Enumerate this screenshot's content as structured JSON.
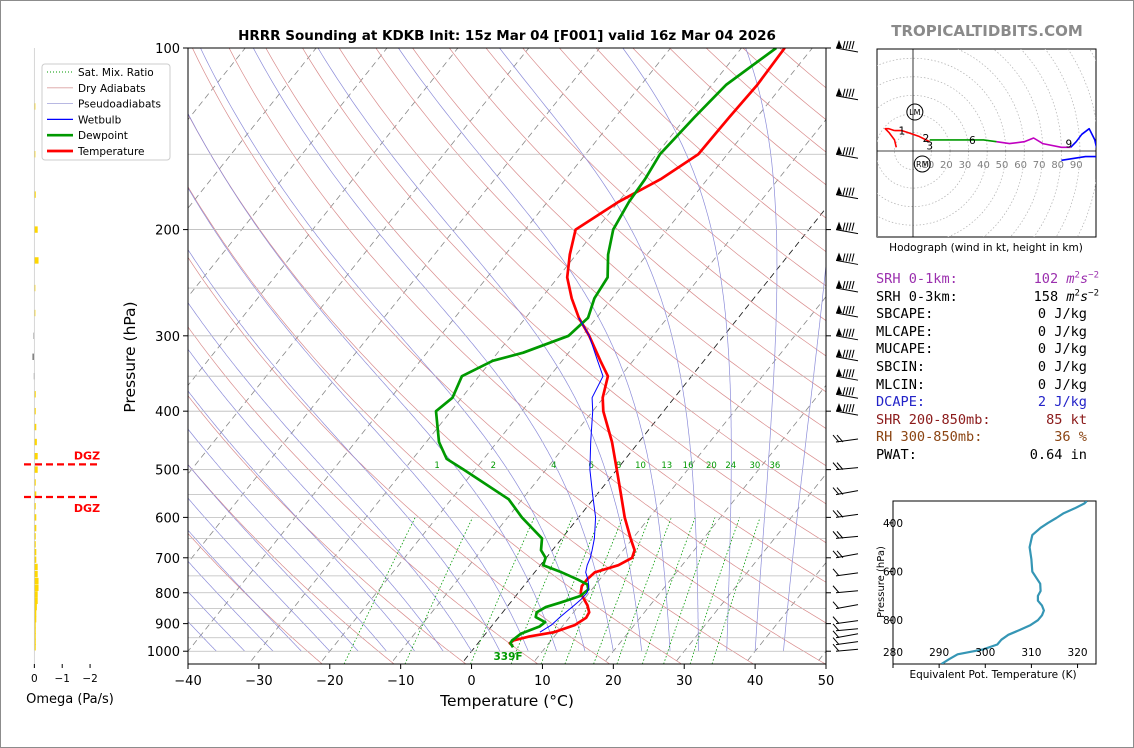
{
  "title": "HRRR Sounding at KDKB Init: 15z Mar 04 [F001] valid 16z Mar 04 2026",
  "brand": "TROPICALTIDBITS.COM",
  "colors": {
    "temperature": "#ff0000",
    "dewpoint": "#009900",
    "wetbulb": "#0000ff",
    "dry_adiabat": "#cc3333",
    "pseudoadiabat": "#3333cc",
    "mixratio": "#009900",
    "omega_up": "#ffd700",
    "omega_down": "#808080",
    "dgz": "#ff0000",
    "srh1": "#9b2fae",
    "dcape": "#2323c8",
    "shr": "#8b1a1a",
    "rh": "#8b4513",
    "hodo_theta": "#3596b5"
  },
  "legend": [
    {
      "label": "Sat. Mix. Ratio",
      "style": "dotted",
      "color": "#009900"
    },
    {
      "label": "Dry Adiabats",
      "style": "solid-thin",
      "color": "#d9a0a0"
    },
    {
      "label": "Pseudoadiabats",
      "style": "solid-thin",
      "color": "#a0a0d9"
    },
    {
      "label": "Wetbulb",
      "style": "solid",
      "color": "#0000ff"
    },
    {
      "label": "Dewpoint",
      "style": "thick",
      "color": "#009900"
    },
    {
      "label": "Temperature",
      "style": "thick",
      "color": "#ff0000"
    }
  ],
  "lcl_label": "339F",
  "dgz_label": "DGZ",
  "omega_label": "Omega (Pa/s)",
  "hodograph": {
    "caption": "Hodograph (wind in kt, height in km)",
    "storm_labels": [
      "LM",
      "RM"
    ]
  },
  "params": [
    {
      "label": "SRH 0-1km:",
      "value": "102",
      "unit": "m2s-2",
      "color": "#9b2fae"
    },
    {
      "label": "SRH 0-3km:",
      "value": "158",
      "unit": "m2s-2",
      "color": "#000000"
    },
    {
      "label": "SBCAPE:",
      "value": "0 J/kg",
      "color": "#000000"
    },
    {
      "label": "MLCAPE:",
      "value": "0 J/kg",
      "color": "#000000"
    },
    {
      "label": "MUCAPE:",
      "value": "0 J/kg",
      "color": "#000000"
    },
    {
      "label": "SBCIN:",
      "value": "0 J/kg",
      "color": "#000000"
    },
    {
      "label": "MLCIN:",
      "value": "0 J/kg",
      "color": "#000000"
    },
    {
      "label": "DCAPE:",
      "value": "2 J/kg",
      "color": "#2323c8"
    },
    {
      "label": "SHR 200-850mb:",
      "value": "85 kt",
      "color": "#8b1a1a"
    },
    {
      "label": "RH 300-850mb:",
      "value": "36 %",
      "color": "#8b4513"
    },
    {
      "label": "PWAT:",
      "value": "0.64 in",
      "color": "#000000"
    }
  ],
  "chart_data": [
    {
      "type": "line",
      "subtype": "skew-t",
      "title": "HRRR Sounding at KDKB Init: 15z Mar 04 [F001] valid 16z Mar 04 2026",
      "xlabel": "Temperature (°C)",
      "ylabel": "Pressure (hPa)",
      "xlim": [
        -40,
        50
      ],
      "ylim": [
        1050,
        100
      ],
      "yscale": "log",
      "xticks": [
        -40,
        -30,
        -20,
        -10,
        0,
        10,
        20,
        30,
        40,
        50
      ],
      "xtick_labels": [
        "−40",
        "−30",
        "−20",
        "−10",
        "0",
        "10",
        "20",
        "30",
        "40",
        "50"
      ],
      "yticks": [
        100,
        200,
        300,
        400,
        500,
        600,
        700,
        800,
        900,
        1000
      ],
      "pressure_gridlines": [
        100,
        150,
        200,
        250,
        300,
        350,
        400,
        450,
        500,
        550,
        600,
        650,
        700,
        750,
        800,
        850,
        900,
        950,
        1000
      ],
      "mixing_ratio_labels": [
        "1",
        "2",
        "4",
        "6",
        "8",
        "10",
        "13",
        "16",
        "20",
        "24",
        "30",
        "36"
      ],
      "mixing_ratio_values": [
        1,
        2,
        4,
        6,
        8,
        10,
        13,
        16,
        20,
        24,
        30,
        36
      ],
      "series": [
        {
          "name": "Temperature",
          "pressure": [
            980,
            970,
            960,
            945,
            930,
            905,
            880,
            862,
            840,
            820,
            800,
            780,
            760,
            740,
            720,
            700,
            680,
            650,
            600,
            550,
            500,
            450,
            400,
            380,
            350,
            330,
            300,
            280,
            260,
            240,
            220,
            200,
            180,
            165,
            150,
            130,
            115,
            100
          ],
          "temp": [
            5.2,
            4.5,
            4.7,
            6.5,
            9.5,
            11.6,
            12.4,
            12.2,
            11.2,
            10.0,
            8.8,
            8.2,
            8.2,
            8.5,
            11.0,
            12.1,
            11.6,
            9.7,
            6.5,
            3.4,
            0.0,
            -3.8,
            -8.5,
            -10.1,
            -11.8,
            -14.6,
            -19.0,
            -22.5,
            -25.7,
            -28.7,
            -30.9,
            -32.9,
            -30.0,
            -26.6,
            -24.1,
            -23.9,
            -23.6,
            -23.9
          ]
        },
        {
          "name": "Dewpoint",
          "pressure": [
            985,
            970,
            960,
            950,
            935,
            910,
            895,
            878,
            862,
            845,
            830,
            810,
            790,
            775,
            760,
            740,
            720,
            700,
            680,
            650,
            600,
            560,
            500,
            480,
            450,
            400,
            380,
            350,
            330,
            320,
            300,
            280,
            260,
            240,
            220,
            200,
            180,
            165,
            150,
            130,
            115,
            100
          ],
          "temp": [
            5.4,
            4.6,
            4.5,
            4.7,
            5.0,
            6.8,
            7.1,
            5.2,
            4.8,
            5.5,
            7.1,
            9.1,
            9.5,
            8.8,
            6.8,
            3.8,
            0.4,
            -0.1,
            -1.6,
            -2.8,
            -8.0,
            -11.9,
            -21.6,
            -25.2,
            -28.2,
            -32.1,
            -31.3,
            -32.4,
            -29.8,
            -26.4,
            -21.9,
            -21.2,
            -22.5,
            -23.0,
            -25.5,
            -27.6,
            -28.5,
            -28.8,
            -29.5,
            -28.8,
            -28.0,
            -25.1
          ]
        },
        {
          "name": "Wetbulb",
          "pressure": [
            930,
            905,
            880,
            862,
            840,
            820,
            800,
            780,
            760,
            740,
            720,
            700,
            680,
            650,
            600,
            550,
            500,
            450,
            400,
            380,
            350,
            330,
            300,
            280
          ],
          "temp": [
            7.5,
            8.3,
            8.6,
            8.9,
            9.3,
            9.6,
            9.7,
            9.2,
            8.3,
            7.2,
            6.6,
            6.2,
            5.6,
            4.6,
            2.4,
            -0.6,
            -3.8,
            -6.8,
            -10.0,
            -11.6,
            -12.5,
            -15.0,
            -19.0,
            -22.5
          ]
        }
      ]
    },
    {
      "type": "bar",
      "subtype": "omega-profile",
      "xlabel": "Omega (Pa/s)",
      "xlim": [
        0.3,
        -2.5
      ],
      "xticks": [
        0,
        -1,
        -2
      ],
      "xtick_labels": [
        "0",
        "−1",
        "−2"
      ],
      "pressure": [
        985,
        965,
        945,
        925,
        905,
        885,
        865,
        845,
        825,
        805,
        785,
        765,
        745,
        725,
        705,
        685,
        665,
        645,
        625,
        600,
        575,
        550,
        525,
        500,
        475,
        450,
        425,
        400,
        375,
        350,
        325,
        300,
        275,
        250,
        225,
        200,
        175,
        150,
        125
      ],
      "values": [
        -0.05,
        -0.05,
        -0.05,
        -0.05,
        -0.05,
        -0.07,
        -0.07,
        -0.09,
        -0.12,
        -0.12,
        -0.15,
        -0.15,
        -0.12,
        -0.12,
        -0.07,
        -0.07,
        -0.05,
        -0.05,
        -0.07,
        -0.07,
        -0.05,
        -0.07,
        -0.05,
        -0.12,
        -0.12,
        -0.09,
        -0.07,
        -0.05,
        -0.05,
        0.02,
        0.07,
        0.03,
        -0.03,
        -0.03,
        -0.15,
        -0.12,
        -0.05,
        -0.03,
        -0.03
      ],
      "dgz_pressures": [
        490,
        555
      ]
    },
    {
      "type": "line",
      "subtype": "hodograph",
      "xlabel": "",
      "ylabel": "",
      "ring_labels": [
        "10",
        "20",
        "30",
        "40",
        "50",
        "60",
        "70",
        "80",
        "90"
      ],
      "ring_values": [
        10,
        20,
        30,
        40,
        50,
        60,
        70,
        80,
        90
      ],
      "height_labels": [
        "1",
        "2",
        "3",
        "6",
        "9"
      ],
      "series": [
        {
          "name": "0-1km",
          "color": "#ff0000",
          "u": [
            -9,
            -10,
            -13,
            -15,
            -13,
            -10
          ],
          "v": [
            2,
            6,
            10,
            12,
            12,
            11
          ]
        },
        {
          "name": "1-3km",
          "color": "#ff0000",
          "u": [
            -10,
            -6,
            -3,
            3,
            7,
            9
          ],
          "v": [
            11,
            11,
            10,
            8,
            6,
            5
          ]
        },
        {
          "name": "3-6km",
          "color": "#009900",
          "u": [
            9,
            14,
            20,
            30,
            38,
            45
          ],
          "v": [
            6,
            6,
            6,
            6,
            6,
            5
          ]
        },
        {
          "name": "6-9km",
          "color": "#c000c0",
          "u": [
            45,
            52,
            60,
            65,
            70,
            80,
            85
          ],
          "v": [
            5,
            4,
            5,
            7,
            4,
            2,
            2
          ]
        },
        {
          "name": "9-12km",
          "color": "#0000ff",
          "u": [
            85,
            88,
            91,
            95,
            98,
            100,
            93,
            80
          ],
          "v": [
            2,
            5,
            9,
            12,
            6,
            -3,
            -3,
            -5
          ]
        }
      ],
      "storm_motion": {
        "LM": [
          1,
          21
        ],
        "RM": [
          5,
          -7
        ]
      }
    },
    {
      "type": "line",
      "subtype": "theta-e-profile",
      "xlabel": "Equivalent Pot. Temperature (K)",
      "ylabel": "Pressure (hPa)",
      "xlim": [
        280,
        324
      ],
      "ylim": [
        980,
        310
      ],
      "xticks": [
        280,
        290,
        300,
        310,
        320
      ],
      "xtick_labels": [
        "280",
        "290",
        "300",
        "310",
        "320"
      ],
      "yticks": [
        400,
        600,
        800
      ],
      "ytick_labels": [
        "400",
        "600",
        "800"
      ],
      "series": [
        {
          "name": "Equivalent Pot. Temperature",
          "pressure": [
            980,
            960,
            940,
            920,
            900,
            880,
            860,
            840,
            820,
            800,
            780,
            760,
            740,
            720,
            700,
            680,
            650,
            600,
            550,
            500,
            450,
            420,
            400,
            380,
            360,
            340,
            320,
            310
          ],
          "theta_e": [
            290.5,
            292.2,
            294,
            299.5,
            302.6,
            303.5,
            305,
            307.5,
            309.8,
            311.4,
            312.3,
            312.7,
            312.3,
            311.4,
            311.4,
            312,
            311.9,
            310.2,
            310,
            309.6,
            310.2,
            312,
            313.6,
            315.4,
            317,
            319.4,
            321.5,
            322
          ]
        }
      ]
    }
  ]
}
